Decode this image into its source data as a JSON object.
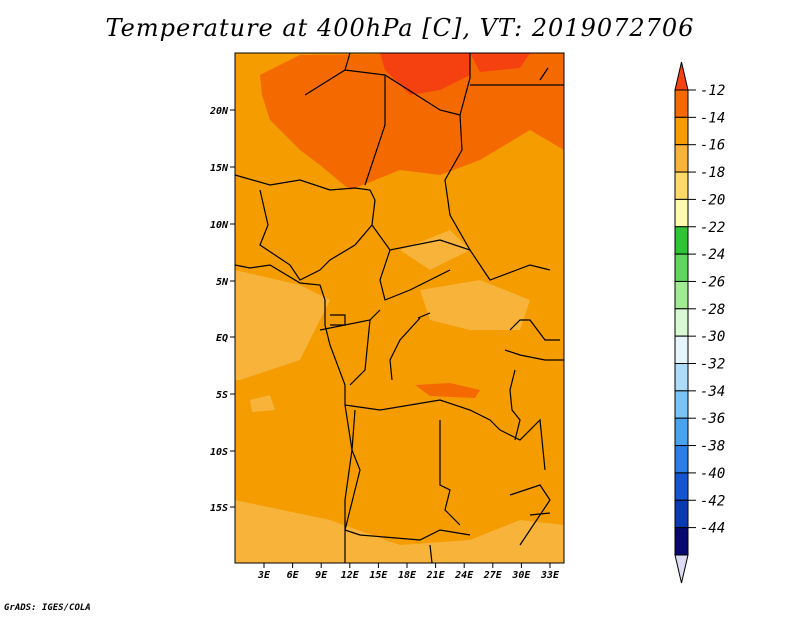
{
  "title": "Temperature at 400hPa [C], VT: 2019072706",
  "credit": "GrADS: IGES/COLA",
  "map": {
    "lat_ticks": [
      "20N",
      "15N",
      "10N",
      "5N",
      "EQ",
      "5S",
      "10S",
      "15S"
    ],
    "lon_ticks": [
      "3E",
      "6E",
      "9E",
      "12E",
      "15E",
      "18E",
      "21E",
      "24E",
      "27E",
      "30E",
      "33E"
    ]
  },
  "colorbar": {
    "labels": [
      "-12",
      "-14",
      "-16",
      "-18",
      "-20",
      "-22",
      "-24",
      "-26",
      "-28",
      "-30",
      "-32",
      "-34",
      "-36",
      "-38",
      "-40",
      "-42",
      "-44"
    ],
    "colors": [
      "#f4410f",
      "#f46a00",
      "#f49c00",
      "#f8b33a",
      "#fdd96a",
      "#fefbb0",
      "#2ec436",
      "#5fd75f",
      "#a0eb93",
      "#d8f9d4",
      "#e6f4fb",
      "#acdcf7",
      "#7ac3f5",
      "#4aa3ee",
      "#2b7fe4",
      "#1456cf",
      "#0a3ab2",
      "#08086e",
      "#dcdcf4"
    ]
  },
  "colors": {
    "base": "#f8b33a",
    "mid": "#f49c00",
    "warm": "#f46a00",
    "hot": "#f4410f"
  }
}
